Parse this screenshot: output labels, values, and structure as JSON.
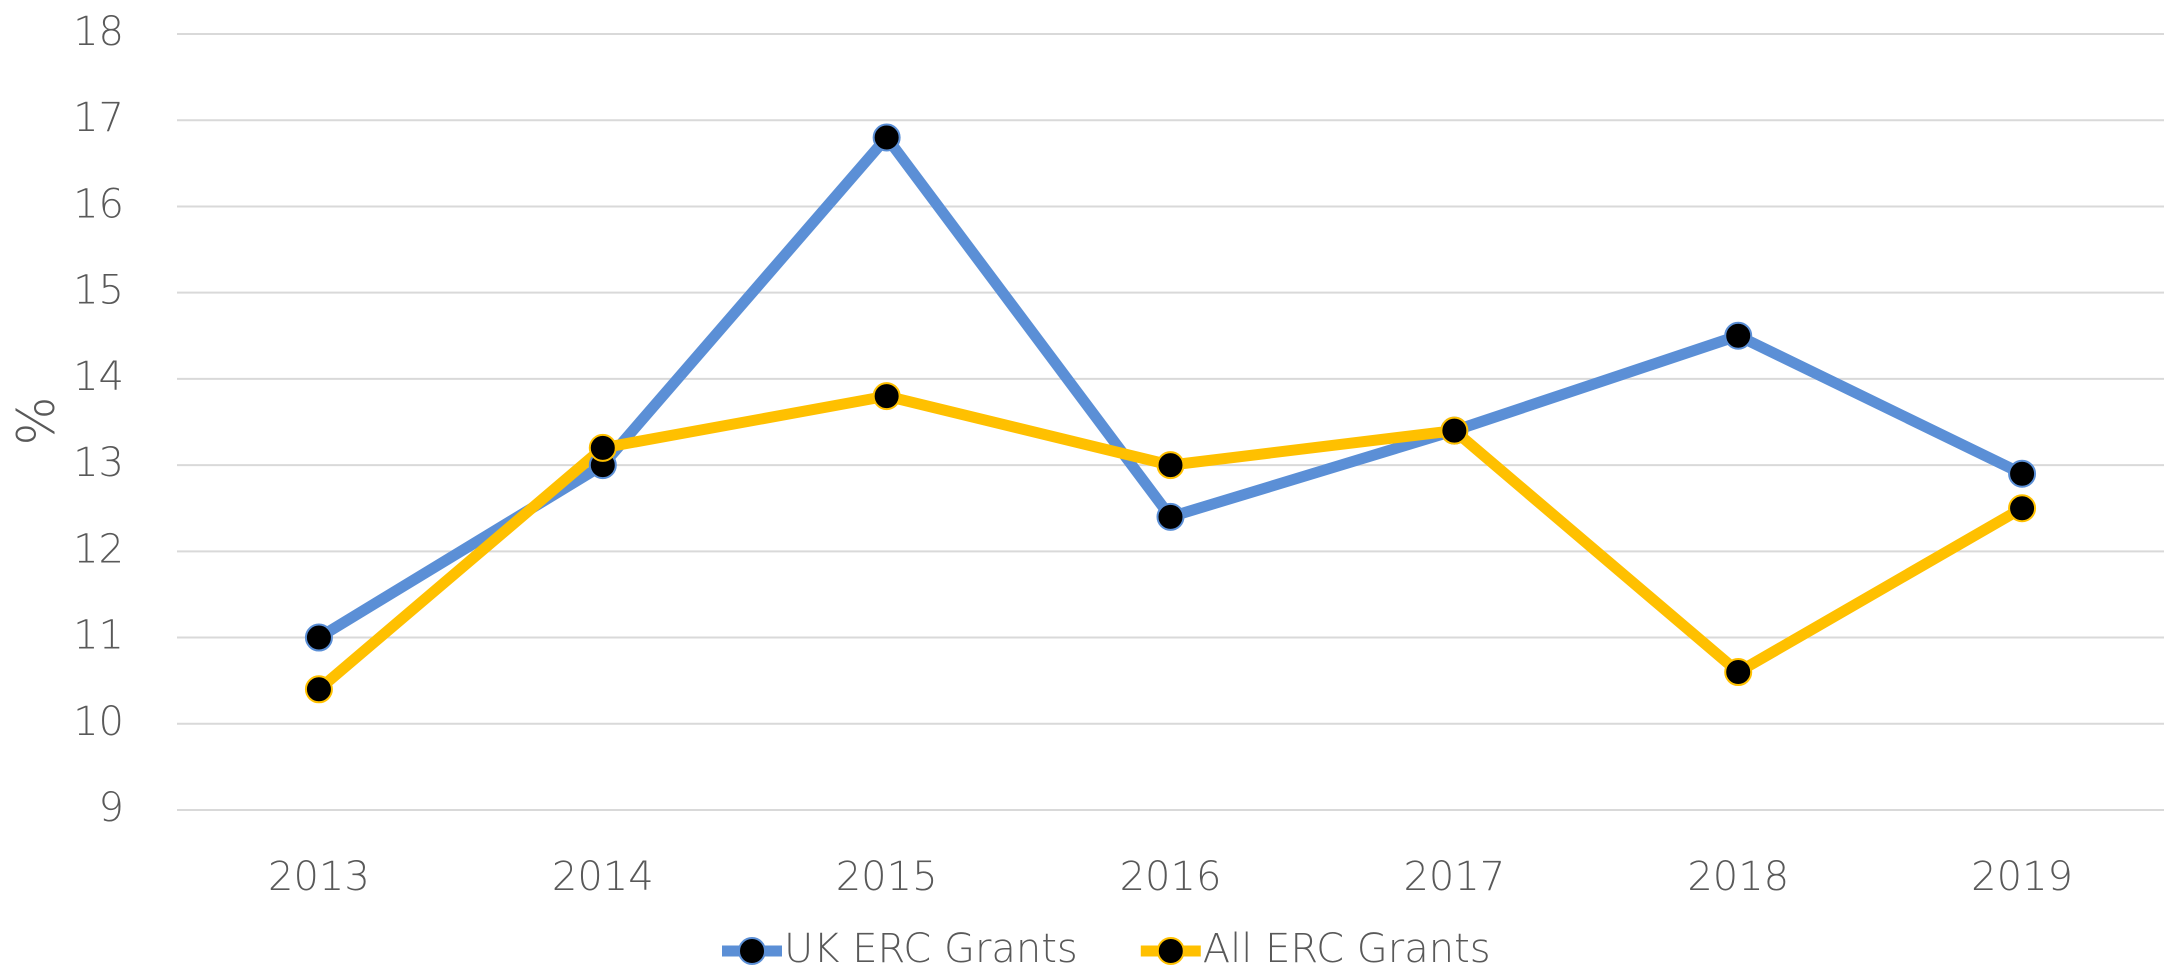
{
  "chart_data": {
    "type": "line",
    "y_label": "%",
    "categories": [
      "2013",
      "2014",
      "2015",
      "2016",
      "2017",
      "2018",
      "2019"
    ],
    "series": [
      {
        "name": "UK ERC Grants",
        "color": "#5b8fd6",
        "values": [
          11.0,
          13.0,
          16.8,
          12.4,
          13.4,
          14.5,
          12.9
        ]
      },
      {
        "name": "All ERC Grants",
        "color": "#ffc000",
        "values": [
          10.4,
          13.2,
          13.8,
          13.0,
          13.4,
          10.6,
          12.5
        ]
      }
    ],
    "ylim": [
      9,
      18
    ],
    "yticks": [
      9,
      10,
      11,
      12,
      13,
      14,
      15,
      16,
      17,
      18
    ],
    "grid": true,
    "legend": "bottom"
  }
}
